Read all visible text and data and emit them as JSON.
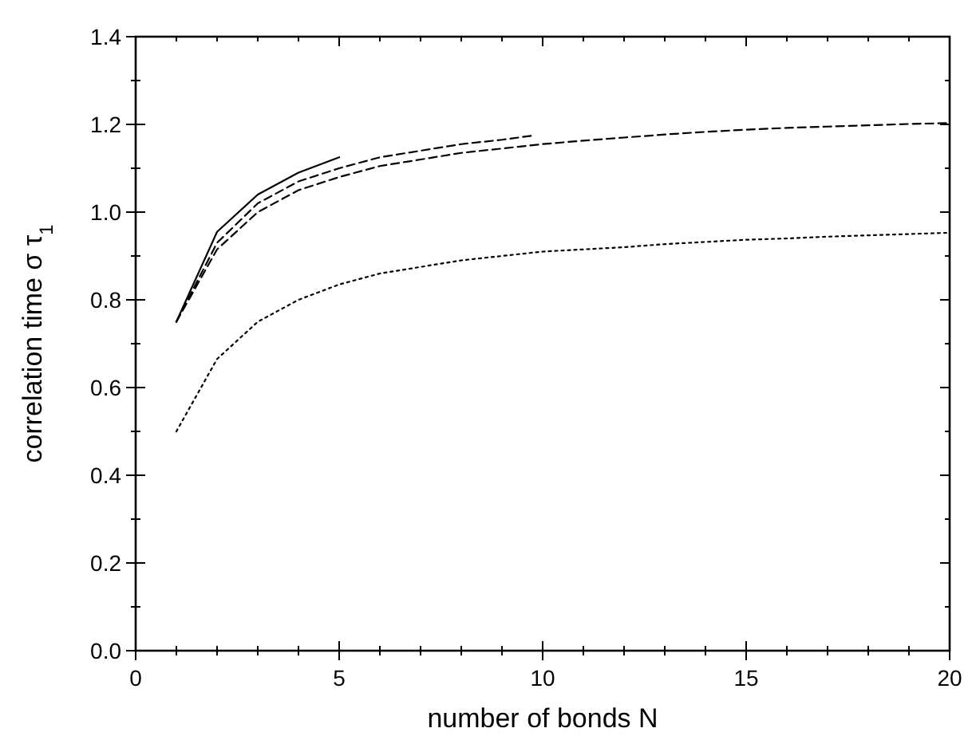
{
  "chart_data": {
    "type": "line",
    "xlabel": "number of bonds  N",
    "ylabel": "correlation time  σ τ$_{1}$",
    "xlim": [
      0,
      20
    ],
    "ylim": [
      0,
      1.4
    ],
    "xticks": [
      0,
      {
        "value": 1,
        "label": null
      },
      {
        "value": 2,
        "label": null
      },
      {
        "value": 3,
        "label": null
      },
      {
        "value": 4,
        "label": null
      },
      5,
      {
        "value": 6,
        "label": null
      },
      {
        "value": 7,
        "label": null
      },
      {
        "value": 8,
        "label": null
      },
      {
        "value": 9,
        "label": null
      },
      10,
      {
        "value": 11,
        "label": null
      },
      {
        "value": 12,
        "label": null
      },
      {
        "value": 13,
        "label": null
      },
      {
        "value": 14,
        "label": null
      },
      15,
      {
        "value": 16,
        "label": null
      },
      {
        "value": 17,
        "label": null
      },
      {
        "value": 18,
        "label": null
      },
      {
        "value": 19,
        "label": null
      },
      20
    ],
    "yticks": [
      {
        "value": 0,
        "label": "0.0"
      },
      {
        "value": 0.1,
        "label": null
      },
      {
        "value": 0.2,
        "label": "0.2"
      },
      {
        "value": 0.3,
        "label": null
      },
      {
        "value": 0.4,
        "label": "0.4"
      },
      {
        "value": 0.5,
        "label": null
      },
      {
        "value": 0.6,
        "label": "0.6"
      },
      {
        "value": 0.7,
        "label": null
      },
      {
        "value": 0.8,
        "label": "0.8"
      },
      {
        "value": 0.9,
        "label": null
      },
      {
        "value": 1,
        "label": "1.0"
      },
      {
        "value": 1.1,
        "label": null
      },
      {
        "value": 1.2,
        "label": "1.2"
      },
      {
        "value": 1.3,
        "label": null
      },
      {
        "value": 1.4,
        "label": "1.4"
      }
    ],
    "grid": false,
    "series": [
      {
        "color": "#000000",
        "line_style": "solid",
        "x": [
          1,
          2,
          3,
          4,
          5
        ],
        "values": [
          0.75,
          0.955,
          1.04,
          1.09,
          1.125
        ]
      },
      {
        "color": "#000000",
        "line_style": "dashed",
        "x": [
          1,
          2,
          3,
          4,
          5,
          6,
          7,
          8,
          9,
          9.8
        ],
        "values": [
          0.75,
          0.93,
          1.02,
          1.07,
          1.1,
          1.125,
          1.14,
          1.155,
          1.165,
          1.175
        ]
      },
      {
        "color": "#000000",
        "line_style": "dashed",
        "x": [
          1,
          2,
          3,
          4,
          5,
          6,
          7,
          8,
          9,
          10,
          11,
          12,
          13,
          14,
          15,
          16,
          17,
          18,
          19,
          20
        ],
        "values": [
          0.75,
          0.915,
          1.0,
          1.05,
          1.08,
          1.105,
          1.12,
          1.135,
          1.145,
          1.155,
          1.163,
          1.17,
          1.177,
          1.183,
          1.188,
          1.192,
          1.195,
          1.198,
          1.201,
          1.203
        ]
      },
      {
        "color": "#000000",
        "line_style": "dotted",
        "x": [
          1,
          2,
          3,
          4,
          5,
          6,
          7,
          8,
          9,
          10,
          11,
          12,
          13,
          14,
          15,
          16,
          17,
          18,
          19,
          20
        ],
        "values": [
          0.5,
          0.665,
          0.75,
          0.8,
          0.835,
          0.86,
          0.875,
          0.89,
          0.9,
          0.91,
          0.915,
          0.92,
          0.927,
          0.932,
          0.937,
          0.94,
          0.944,
          0.947,
          0.95,
          0.953
        ]
      }
    ]
  }
}
